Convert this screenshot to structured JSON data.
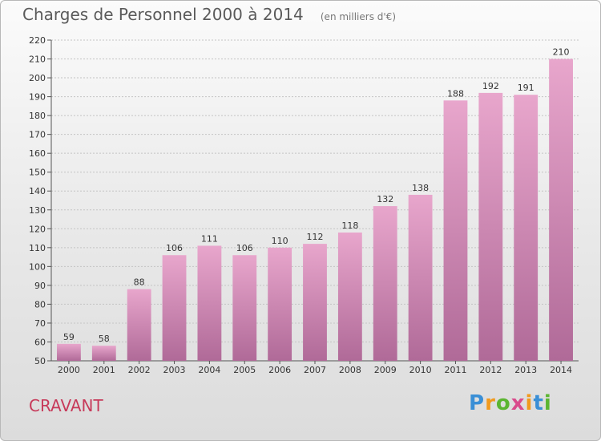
{
  "title": "Charges de Personnel 2000 à 2014",
  "subtitle": "(en milliers d'€)",
  "commune": "CRAVANT",
  "logo": {
    "text": "Proxiti",
    "colors": [
      "#3a8fd6",
      "#f19a1e",
      "#5bb531",
      "#d94b8c",
      "#f19a1e",
      "#3a8fd6",
      "#5bb531"
    ]
  },
  "chart_data": {
    "type": "bar",
    "title": "Charges de Personnel 2000 à 2014",
    "subtitle": "(en milliers d'€)",
    "xlabel": "",
    "ylabel": "",
    "categories": [
      "2000",
      "2001",
      "2002",
      "2003",
      "2004",
      "2005",
      "2006",
      "2007",
      "2008",
      "2009",
      "2010",
      "2011",
      "2012",
      "2013",
      "2014"
    ],
    "values": [
      59,
      58,
      88,
      106,
      111,
      106,
      110,
      112,
      118,
      132,
      138,
      188,
      192,
      191,
      210
    ],
    "ylim": [
      50,
      220
    ],
    "yticks": [
      50,
      60,
      70,
      80,
      90,
      100,
      110,
      120,
      130,
      140,
      150,
      160,
      170,
      180,
      190,
      200,
      210,
      220
    ],
    "grid": true,
    "bar_color_top": "#e8a6cc",
    "bar_color_bottom": "#b06a98"
  }
}
